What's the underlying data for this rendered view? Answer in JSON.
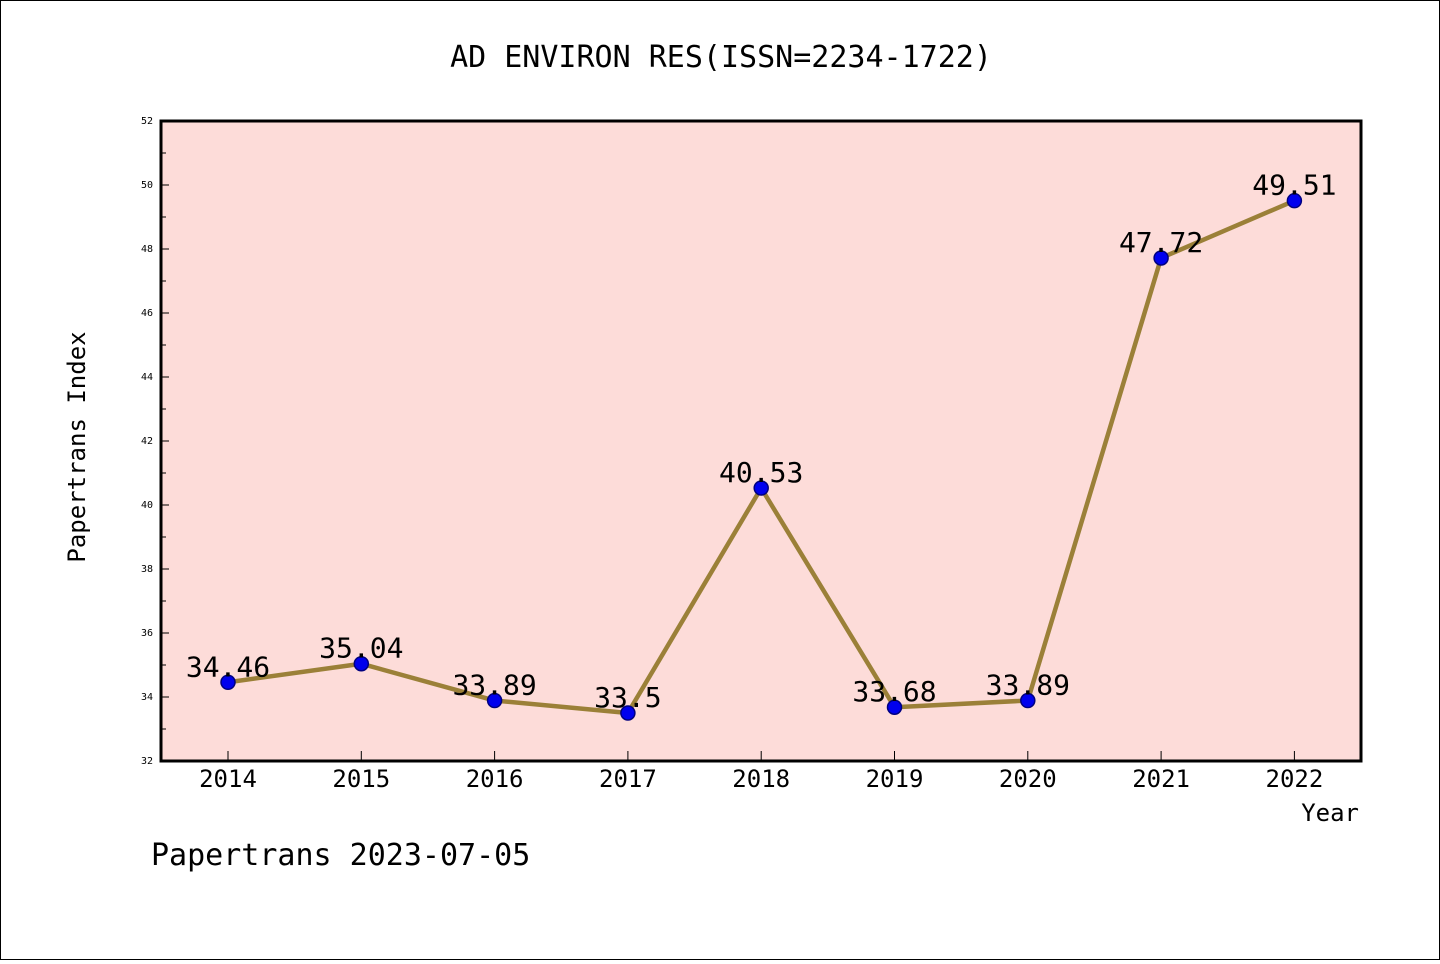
{
  "chart_data": {
    "type": "line",
    "title": "AD ENVIRON RES(ISSN=2234-1722)",
    "xlabel": "Year",
    "ylabel": "Papertrans Index",
    "categories": [
      "2014",
      "2015",
      "2016",
      "2017",
      "2018",
      "2019",
      "2020",
      "2021",
      "2022"
    ],
    "values": [
      34.46,
      35.04,
      33.89,
      33.5,
      40.53,
      33.68,
      33.89,
      47.72,
      49.51
    ],
    "data_labels": [
      "34.46",
      "35.04",
      "33.89",
      "33.5",
      "40.53",
      "33.68",
      "33.89",
      "47.72",
      "49.51"
    ],
    "ylim": [
      32,
      52
    ],
    "yticks": [
      "32",
      "34",
      "36",
      "38",
      "40",
      "42",
      "44",
      "46",
      "48",
      "50",
      "52"
    ],
    "grid": false,
    "colors": {
      "plot_background": "#fddcd9",
      "line": "#9b8038",
      "marker": "#0000ee",
      "marker_edge": "#000080"
    }
  },
  "footer": "Papertrans 2023-07-05"
}
